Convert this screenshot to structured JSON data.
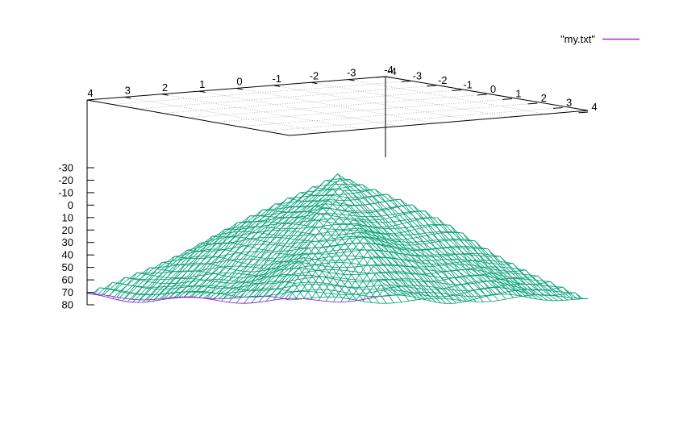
{
  "chart_data": {
    "type": "surface",
    "title": "",
    "legend": {
      "position": "top-right",
      "entries": [
        {
          "name": "\"my.txt\"",
          "color": "#9400d3"
        }
      ]
    },
    "colors": {
      "top_surface": "#009e73",
      "bottom_surface": "#9400d3",
      "axis": "#000000",
      "grid": "#a0a0a0"
    },
    "x_axis": {
      "range": [
        -4,
        4
      ],
      "ticks": [
        "-4",
        "-3",
        "-2",
        "-1",
        "0",
        "1",
        "2",
        "3",
        "4"
      ]
    },
    "y_axis": {
      "range": [
        -4,
        4
      ],
      "ticks": [
        "-4",
        "-3",
        "-2",
        "-1",
        "0",
        "1",
        "2",
        "3",
        "4"
      ]
    },
    "z_axis": {
      "range": [
        -30,
        80
      ],
      "reversed": true,
      "ticks": [
        "-30",
        "-20",
        "-10",
        "0",
        "10",
        "20",
        "30",
        "40",
        "50",
        "60",
        "70",
        "80"
      ]
    },
    "surface": {
      "grid_range": [
        -4,
        4
      ],
      "peak_z": -27,
      "edge_z": 75,
      "noise_amplitude": 4
    }
  }
}
